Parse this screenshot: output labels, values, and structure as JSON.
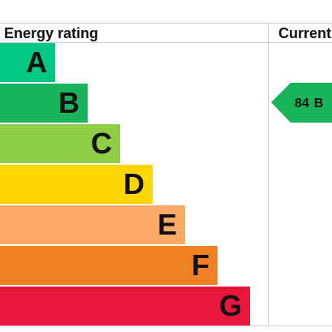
{
  "header": {
    "left": "Energy rating",
    "right": "Current"
  },
  "bands": [
    {
      "letter": "A",
      "color": "#00c781"
    },
    {
      "letter": "B",
      "color": "#19b459"
    },
    {
      "letter": "C",
      "color": "#8dce46"
    },
    {
      "letter": "D",
      "color": "#ffd500"
    },
    {
      "letter": "E",
      "color": "#fcaa65"
    },
    {
      "letter": "F",
      "color": "#ef8023"
    },
    {
      "letter": "G",
      "color": "#e9153b"
    }
  ],
  "current": {
    "score": 84,
    "band": "B"
  }
}
